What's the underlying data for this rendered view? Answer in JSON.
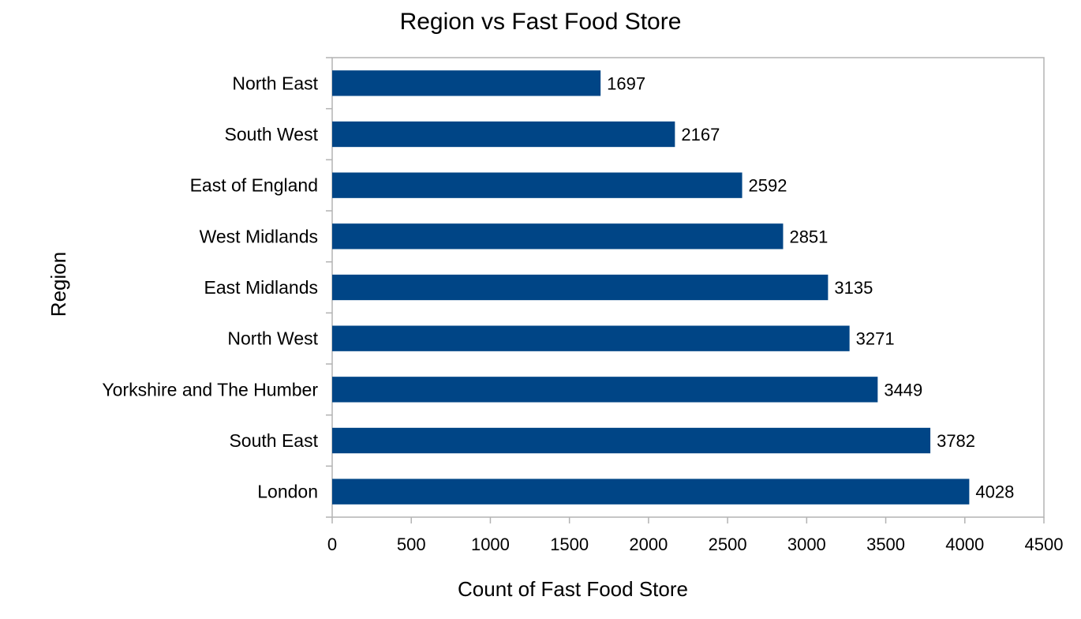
{
  "chart_data": {
    "type": "bar",
    "orientation": "horizontal",
    "title": "Region vs Fast Food Store",
    "xlabel": "Count of Fast Food Store",
    "ylabel": "Region",
    "categories": [
      "North East",
      "South West",
      "East of England",
      "West Midlands",
      "East Midlands",
      "North West",
      "Yorkshire and The Humber",
      "South East",
      "London"
    ],
    "values": [
      1697,
      2167,
      2592,
      2851,
      3135,
      3271,
      3449,
      3782,
      4028
    ],
    "xlim": [
      0,
      4500
    ],
    "x_ticks": [
      0,
      500,
      1000,
      1500,
      2000,
      2500,
      3000,
      3500,
      4000,
      4500
    ],
    "data_labels": true,
    "grid": false,
    "legend": "none",
    "bar_color": "#004586"
  }
}
